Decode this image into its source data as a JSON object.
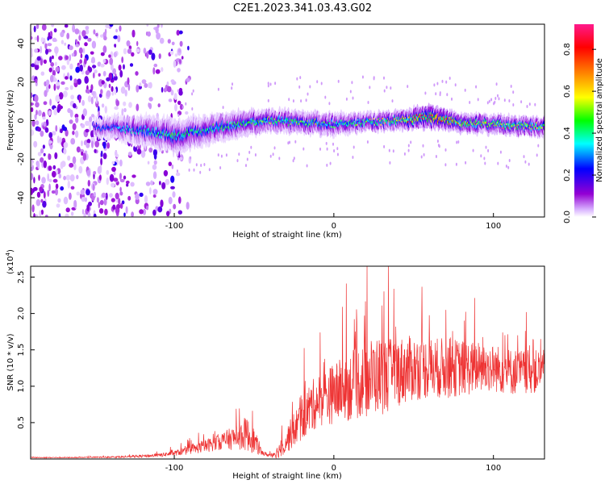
{
  "title": "C2E1.2023.341.03.43.G02",
  "chart_data": [
    {
      "type": "heatmap",
      "xlabel": "Height of straight line (km)",
      "ylabel": "Frequency (Hz)",
      "xlim": [
        -190,
        132
      ],
      "ylim": [
        -50,
        50
      ],
      "xticks": [
        -100,
        0,
        100
      ],
      "yticks": [
        -40,
        -20,
        0,
        20,
        40
      ],
      "ridge": {
        "x": [
          -150,
          -120,
          -100,
          -80,
          -60,
          -40,
          -20,
          0,
          20,
          40,
          60,
          80,
          100,
          120,
          132
        ],
        "center_hz": [
          -3,
          -5,
          -8,
          -5,
          -2,
          0,
          -1,
          -2,
          -1,
          0,
          2,
          -1,
          -2,
          -3,
          -3
        ],
        "halfwidth_hz": [
          5,
          8,
          9,
          8,
          7,
          6,
          6,
          6,
          5,
          5,
          6,
          5,
          5,
          5,
          5
        ],
        "peak_amplitude": [
          0.25,
          0.35,
          0.4,
          0.38,
          0.42,
          0.45,
          0.45,
          0.4,
          0.45,
          0.55,
          0.85,
          0.6,
          0.55,
          0.55,
          0.5
        ]
      },
      "noise_region_x": [
        -190,
        -100
      ],
      "colorbar": {
        "label": "Normalized spectral amplitude",
        "range": [
          0,
          0.92
        ],
        "ticks": [
          "0.0",
          "0.2",
          "0.4",
          "0.6",
          "0.8"
        ],
        "colors": [
          "#ffffff",
          "#9400d3",
          "#0000ff",
          "#00ffff",
          "#00ff00",
          "#ffff00",
          "#ff7f00",
          "#ff0000",
          "#ff1493"
        ]
      }
    },
    {
      "type": "line",
      "xlabel": "Height of straight line (km)",
      "ylabel": "SNR (10 * v/v)",
      "y_multiplier": "(x10",
      "y_exponent": "4",
      "y_multiplier_close": ")",
      "xlim": [
        -190,
        132
      ],
      "ylim": [
        0,
        2.65
      ],
      "xticks": [
        -100,
        0,
        100
      ],
      "yticks": [
        "0.5",
        "1.0",
        "1.5",
        "2.0",
        "2.5"
      ],
      "color": "#ee3333",
      "series": [
        {
          "x": [
            -190,
            -160,
            -130,
            -110,
            -100,
            -90,
            -80,
            -70,
            -60,
            -55,
            -50,
            -45,
            -40,
            -35,
            -30,
            -25,
            -20,
            -15,
            -10,
            -5,
            0,
            5,
            10,
            15,
            20,
            25,
            30,
            35,
            40,
            50,
            60,
            70,
            80,
            90,
            100,
            110,
            120,
            132
          ],
          "y": [
            0.02,
            0.02,
            0.03,
            0.05,
            0.08,
            0.12,
            0.18,
            0.25,
            0.3,
            0.35,
            0.25,
            0.08,
            0.05,
            0.1,
            0.25,
            0.4,
            0.55,
            0.7,
            0.8,
            0.85,
            0.9,
            0.95,
            1.0,
            1.05,
            1.1,
            1.15,
            1.15,
            1.15,
            1.2,
            1.25,
            1.25,
            1.25,
            1.25,
            1.25,
            1.25,
            1.2,
            1.2,
            1.2
          ],
          "spread": [
            0.01,
            0.01,
            0.02,
            0.04,
            0.06,
            0.1,
            0.15,
            0.2,
            0.3,
            0.4,
            0.3,
            0.05,
            0.05,
            0.15,
            0.3,
            0.4,
            0.5,
            0.6,
            0.6,
            0.65,
            0.7,
            0.75,
            0.8,
            0.85,
            0.9,
            0.9,
            0.9,
            0.85,
            0.8,
            0.75,
            0.7,
            0.7,
            0.65,
            0.6,
            0.55,
            0.55,
            0.5,
            0.5
          ]
        }
      ],
      "grid": false
    }
  ]
}
